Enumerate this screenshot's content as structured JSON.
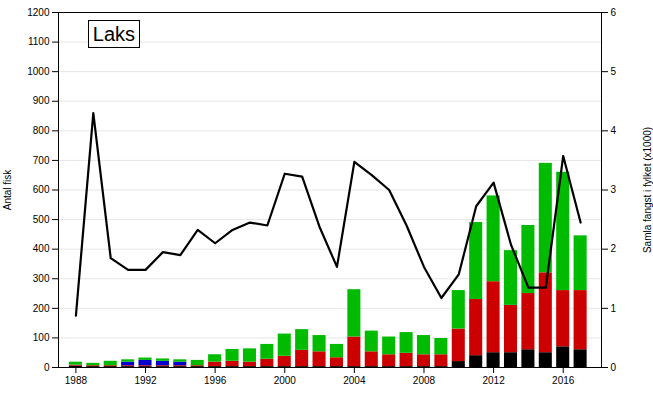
{
  "chart_data": {
    "type": "bar",
    "title": "Laks",
    "stacked": true,
    "grid": true,
    "ylabel": "Antal fisk",
    "y2label": "Samla fangst i fylket (x1000)",
    "x": [
      1988,
      1989,
      1990,
      1991,
      1992,
      1993,
      1994,
      1995,
      1996,
      1997,
      1998,
      1999,
      2000,
      2001,
      2002,
      2003,
      2004,
      2005,
      2006,
      2007,
      2008,
      2009,
      2010,
      2011,
      2012,
      2013,
      2014,
      2015,
      2016,
      2017
    ],
    "xlim": [
      1987.0,
      2018.2
    ],
    "xticks": [
      1988,
      1992,
      1996,
      2000,
      2004,
      2008,
      2012,
      2016
    ],
    "ylim": [
      0,
      1200
    ],
    "yticks": [
      0,
      100,
      200,
      300,
      400,
      500,
      600,
      700,
      800,
      900,
      1000,
      1100,
      1200
    ],
    "y2lim": [
      0,
      6
    ],
    "y2ticks": [
      0,
      1,
      2,
      3,
      4,
      5,
      6
    ],
    "series": [
      {
        "type": "bar",
        "color": "#000000",
        "values": [
          5,
          3,
          3,
          3,
          3,
          3,
          3,
          3,
          3,
          3,
          3,
          3,
          3,
          3,
          3,
          3,
          3,
          3,
          3,
          3,
          3,
          3,
          20,
          40,
          50,
          50,
          60,
          50,
          70,
          60
        ]
      },
      {
        "type": "bar",
        "color": "#cc0000",
        "values": [
          3,
          3,
          3,
          3,
          3,
          3,
          3,
          3,
          15,
          18,
          15,
          25,
          35,
          55,
          50,
          30,
          100,
          50,
          40,
          45,
          40,
          40,
          110,
          190,
          240,
          160,
          190,
          270,
          190,
          200
        ]
      },
      {
        "type": "bar",
        "color": "#0000cc",
        "values": [
          0,
          0,
          0,
          12,
          18,
          15,
          12,
          0,
          0,
          0,
          0,
          0,
          0,
          0,
          0,
          0,
          0,
          0,
          0,
          0,
          0,
          0,
          0,
          0,
          0,
          0,
          0,
          0,
          0,
          0
        ]
      },
      {
        "type": "bar",
        "color": "#00bb00",
        "values": [
          10,
          8,
          15,
          8,
          8,
          8,
          8,
          18,
          25,
          40,
          45,
          50,
          75,
          70,
          55,
          45,
          160,
          70,
          60,
          70,
          65,
          55,
          130,
          260,
          290,
          185,
          230,
          370,
          400,
          185
        ]
      },
      {
        "type": "line",
        "color": "#000000",
        "values": [
          175,
          860,
          370,
          330,
          330,
          390,
          380,
          465,
          420,
          465,
          490,
          480,
          655,
          645,
          475,
          340,
          695,
          650,
          600,
          480,
          340,
          235,
          315,
          545,
          625,
          415,
          270,
          270,
          715,
          490
        ]
      }
    ]
  }
}
